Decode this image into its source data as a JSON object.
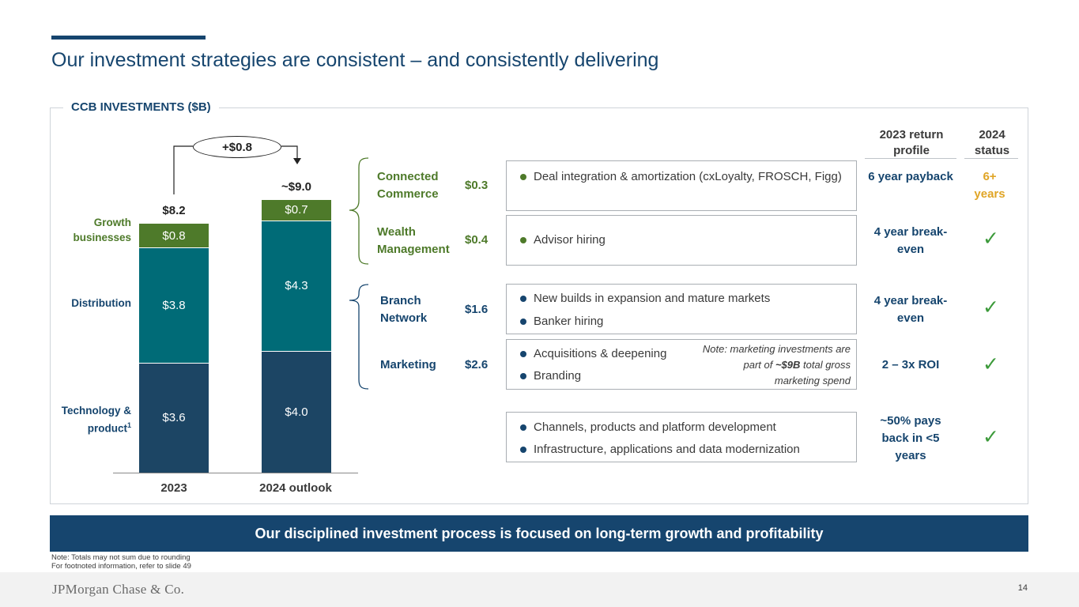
{
  "title": "Our investment strategies are consistent – and consistently delivering",
  "panel_label": "CCB INVESTMENTS ($B)",
  "chart_data": {
    "type": "bar",
    "stacked": true,
    "title": "CCB INVESTMENTS ($B)",
    "categories": [
      "2023",
      "2024 outlook"
    ],
    "series": [
      {
        "name": "Technology & product",
        "values": [
          3.6,
          4.0
        ],
        "labels": [
          "$3.6",
          "$4.0"
        ],
        "color": "#1c4564"
      },
      {
        "name": "Distribution",
        "values": [
          3.8,
          4.3
        ],
        "labels": [
          "$3.8",
          "$4.3"
        ],
        "color": "#006b77"
      },
      {
        "name": "Growth businesses",
        "values": [
          0.8,
          0.7
        ],
        "labels": [
          "$0.8",
          "$0.7"
        ],
        "color": "#4e7a2a"
      }
    ],
    "totals": [
      "$8.2",
      "~$9.0"
    ],
    "change_label": "+$0.8",
    "legend_labels": {
      "growth": "Growth businesses",
      "distribution": "Distribution",
      "technology": "Technology & product",
      "technology_footnote": "1"
    },
    "legend_colors": {
      "growth": "#4e7a2a",
      "distribution": "#16456e",
      "technology": "#16456e"
    },
    "ylim": [
      0,
      9.2
    ]
  },
  "table": {
    "headers": {
      "return": "2023 return profile",
      "status": "2024 status"
    },
    "rows": [
      {
        "label": "Connected Commerce",
        "amount": "$0.3",
        "bullets": [
          "Deal integration & amortization (cxLoyalty, FROSCH, Figg)"
        ],
        "return": "6 year payback",
        "status_text": "6+ years",
        "status_check": false
      },
      {
        "label": "Wealth Management",
        "amount": "$0.4",
        "bullets": [
          "Advisor hiring"
        ],
        "return": "4 year break-even",
        "status_text": "",
        "status_check": true
      },
      {
        "label": "Branch Network",
        "amount": "$1.6",
        "bullets": [
          "New builds in expansion and mature markets",
          "Banker hiring"
        ],
        "return": "4 year break-even",
        "status_text": "",
        "status_check": true
      },
      {
        "label": "Marketing",
        "amount": "$2.6",
        "bullets": [
          "Acquisitions & deepening",
          "Branding"
        ],
        "return": "2 – 3x ROI",
        "status_text": "",
        "status_check": true
      },
      {
        "label": "",
        "amount": "",
        "bullets": [
          "Channels, products and platform development",
          "Infrastructure, applications and data modernization"
        ],
        "return": "~50% pays back in <5 years",
        "status_text": "",
        "status_check": true
      }
    ],
    "marketing_note": {
      "before": "Note: marketing investments are part of ",
      "bold": "~$9B",
      "after": " total gross marketing spend"
    },
    "check_symbol": "✓"
  },
  "banner": "Our disciplined investment process is focused on long-term growth and profitability",
  "footnotes": [
    "Note: Totals may not sum due to rounding",
    "For footnoted information, refer to slide 49"
  ],
  "footer": {
    "logo": "JPMorgan Chase & Co.",
    "page": "14"
  }
}
